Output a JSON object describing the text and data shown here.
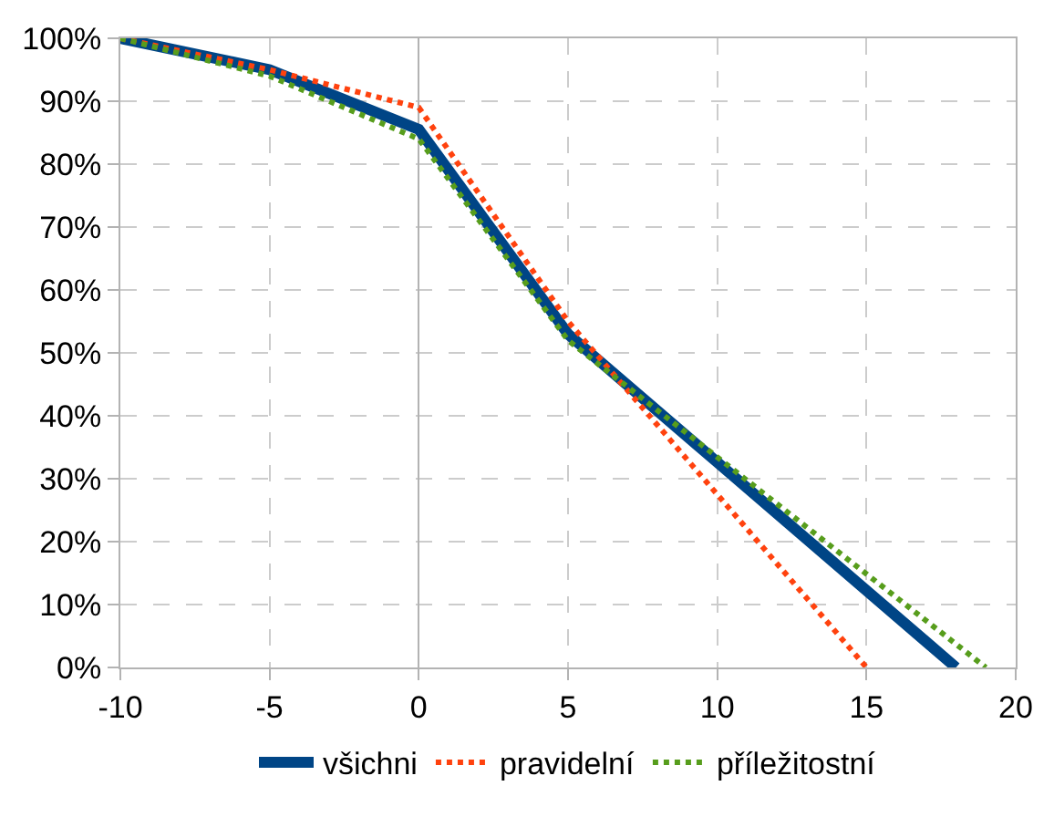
{
  "chart_data": {
    "type": "line",
    "x": [
      -10,
      -5,
      0,
      5,
      18
    ],
    "series": [
      {
        "name": "všichni",
        "color": "#004586",
        "line_style": "solid",
        "values": [
          100,
          95,
          85.5,
          53,
          0
        ]
      },
      {
        "name": "pravidelní",
        "color": "#ff420e",
        "line_style": "dotted",
        "x": [
          -10,
          -5,
          0,
          5,
          15
        ],
        "values": [
          100,
          95,
          89,
          55,
          0
        ]
      },
      {
        "name": "příležitostní",
        "color": "#579d1c",
        "line_style": "dotted",
        "x": [
          -10,
          -5,
          0,
          5,
          19
        ],
        "values": [
          100,
          94,
          84,
          52,
          0
        ]
      }
    ],
    "xlim": [
      -10,
      20
    ],
    "xticks": [
      -10,
      -5,
      0,
      5,
      10,
      15,
      20
    ],
    "ylim": [
      0,
      100
    ],
    "yticks": [
      {
        "value": 0,
        "label": "0%"
      },
      {
        "value": 10,
        "label": "10%"
      },
      {
        "value": 20,
        "label": "20%"
      },
      {
        "value": 30,
        "label": "30%"
      },
      {
        "value": 40,
        "label": "40%"
      },
      {
        "value": 50,
        "label": "50%"
      },
      {
        "value": 60,
        "label": "60%"
      },
      {
        "value": 70,
        "label": "70%"
      },
      {
        "value": 80,
        "label": "80%"
      },
      {
        "value": 90,
        "label": "90%"
      },
      {
        "value": 100,
        "label": "100%"
      }
    ],
    "grid": true,
    "legend": "bottom",
    "marker": "none"
  }
}
